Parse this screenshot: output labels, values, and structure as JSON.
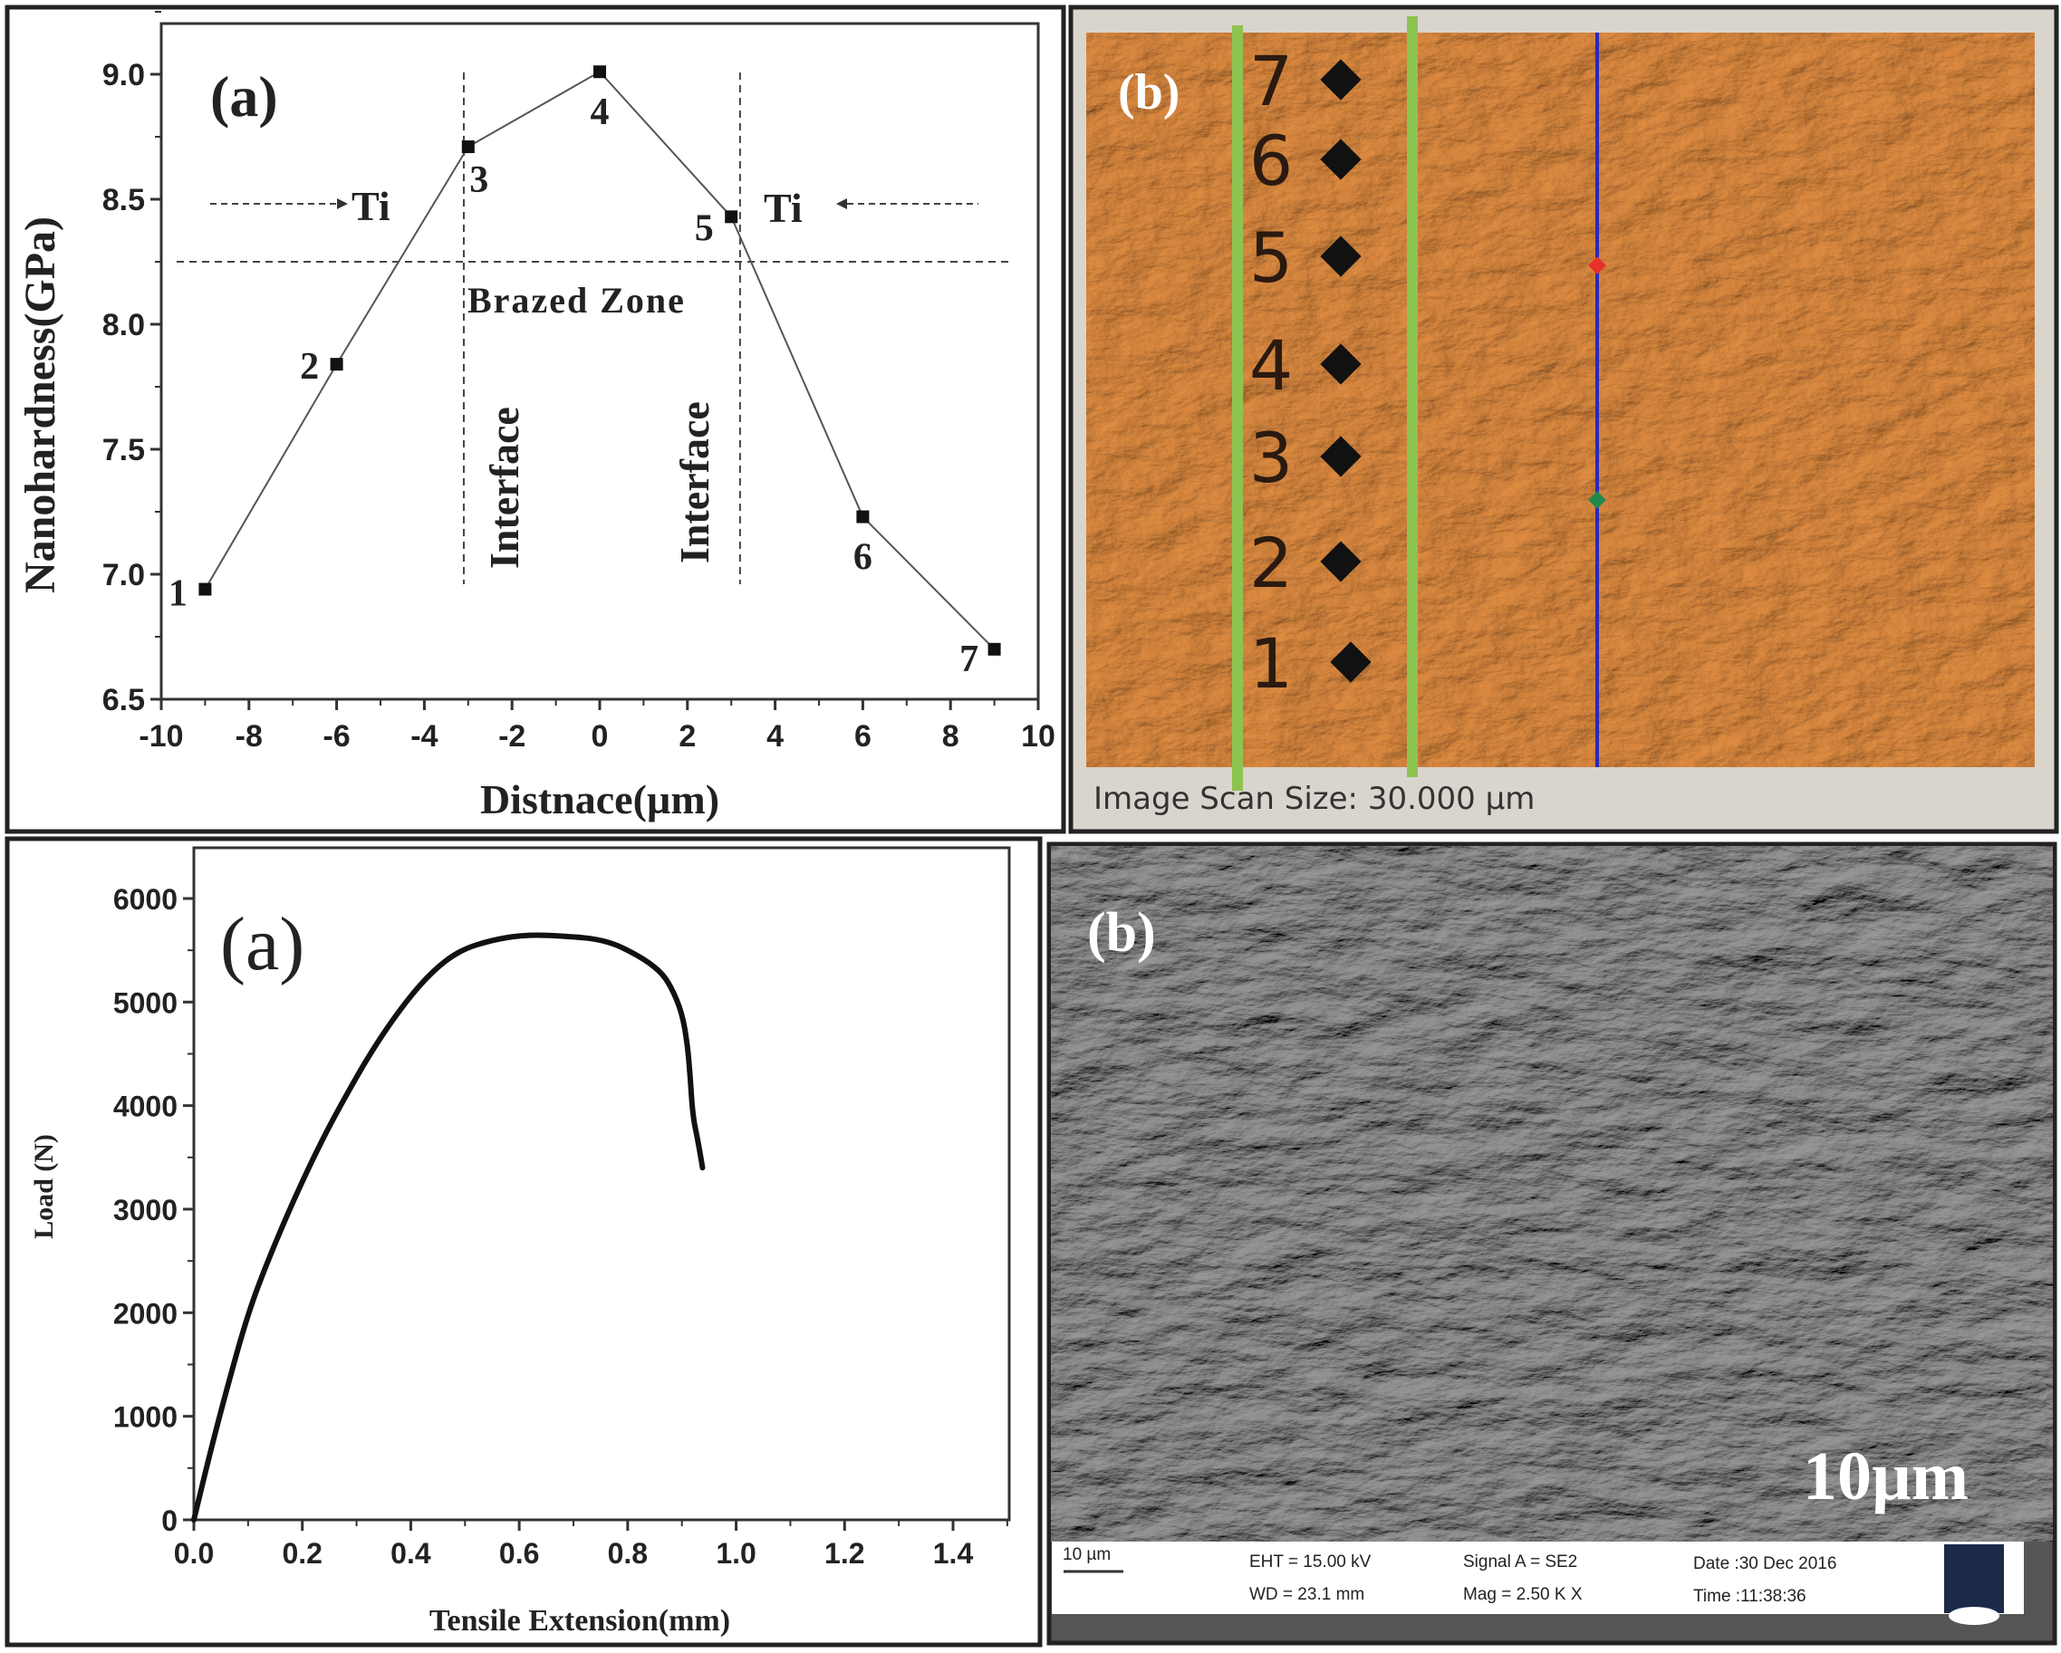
{
  "chart_data": [
    {
      "type": "line",
      "panel_label": "(a)",
      "xlabel": "Distnace(µm)",
      "ylabel": "Nanohardness(GPa)",
      "xlim": [
        -10,
        10
      ],
      "ylim": [
        6.5,
        9.2
      ],
      "xticks": [
        -10,
        -8,
        -6,
        -4,
        -2,
        0,
        2,
        4,
        6,
        8,
        10
      ],
      "yticks": [
        6.5,
        7.0,
        7.5,
        8.0,
        8.5,
        9.0
      ],
      "marker": "square",
      "grid": false,
      "points": [
        {
          "label": "1",
          "x": -9,
          "y": 6.94
        },
        {
          "label": "2",
          "x": -6,
          "y": 7.84
        },
        {
          "label": "3",
          "x": -3,
          "y": 8.71
        },
        {
          "label": "4",
          "x": 0,
          "y": 9.01
        },
        {
          "label": "5",
          "x": 3,
          "y": 8.43
        },
        {
          "label": "6",
          "x": 6,
          "y": 7.23
        },
        {
          "label": "7",
          "x": 9,
          "y": 6.7
        }
      ],
      "reference_lines": {
        "vertical_x": [
          -3.1,
          3.2
        ],
        "horizontal_y": 8.25
      },
      "annotations": {
        "ti_left": "Ti",
        "ti_right": "Ti",
        "brazed_zone": "Brazed Zone",
        "interface_left": "Interface",
        "interface_right": "Interface"
      }
    },
    {
      "type": "line",
      "panel_label": "(a)",
      "xlabel": "Tensile Extension(mm)",
      "ylabel": "Load (N)",
      "xlim": [
        0,
        1.5
      ],
      "ylim": [
        0,
        6450
      ],
      "xticks": [
        0.0,
        0.2,
        0.4,
        0.6,
        0.8,
        1.0,
        1.2,
        1.4
      ],
      "yticks": [
        0,
        1000,
        2000,
        3000,
        4000,
        5000,
        6000
      ],
      "grid": false,
      "x": [
        0,
        0.03,
        0.06,
        0.1,
        0.14,
        0.185,
        0.23,
        0.27,
        0.33,
        0.39,
        0.44,
        0.49,
        0.55,
        0.61,
        0.68,
        0.76,
        0.82,
        0.86,
        0.88,
        0.9,
        0.91,
        0.915,
        0.92,
        0.93,
        0.938
      ],
      "y": [
        0,
        650,
        1250,
        2000,
        2550,
        3100,
        3600,
        4000,
        4550,
        5000,
        5300,
        5500,
        5600,
        5650,
        5640,
        5600,
        5450,
        5300,
        5150,
        4900,
        4600,
        4300,
        3900,
        3650,
        3400
      ]
    }
  ],
  "afm_panel": {
    "label": "(b)",
    "indent_labels": [
      "7",
      "6",
      "5",
      "4",
      "3",
      "2",
      "1"
    ],
    "caption": "Image Scan Size:  30.000 µm",
    "colors": {
      "surface": "#b5692c",
      "guide_lines": "#8dc34f",
      "scan_line": "#2a2ab8",
      "marker_top": "#e8302c",
      "marker_bottom": "#1f8a4c"
    }
  },
  "sem_panel": {
    "label": "(b)",
    "scale_label": "10µm",
    "info_bar": {
      "scale_bar": "10 µm",
      "eht": "EHT = 15.00 kV",
      "wd": "WD = 23.1 mm",
      "signal": "Signal A = SE2",
      "mag": "Mag =    2.50 K X",
      "date": "Date :30 Dec 2016",
      "time": "Time :11:38:36",
      "logo": "ZEISS"
    }
  }
}
